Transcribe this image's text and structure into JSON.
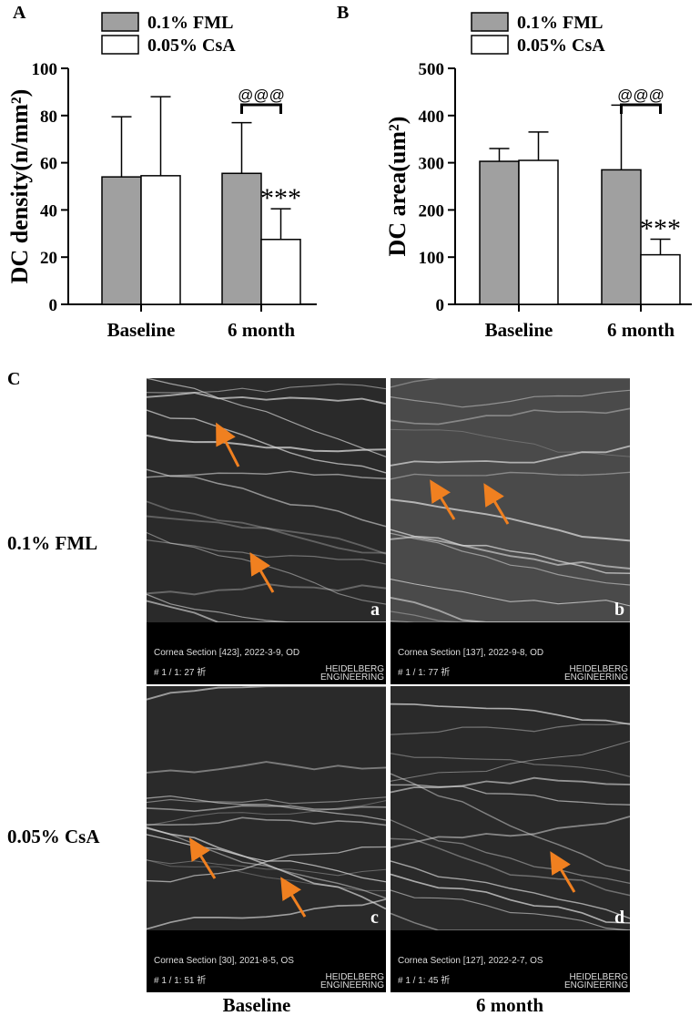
{
  "chart_data": [
    {
      "type": "bar",
      "label": "A",
      "ylabel": "DC density(n/mm²)",
      "categories": [
        "Baseline",
        "6 month"
      ],
      "series": [
        {
          "name": "0.1% FML",
          "color": "#a0a0a0",
          "values": [
            54,
            55.5
          ],
          "errors": [
            25.5,
            21.5
          ]
        },
        {
          "name": "0.05% CsA",
          "color": "#ffffff",
          "values": [
            54.5,
            27.5
          ],
          "errors": [
            33.5,
            13
          ]
        }
      ],
      "ylim": [
        0,
        100
      ],
      "yticks": [
        0,
        20,
        40,
        60,
        80,
        100
      ],
      "annotations": [
        "@@@",
        "***"
      ]
    },
    {
      "type": "bar",
      "label": "B",
      "ylabel": "DC area(um²)",
      "categories": [
        "Baseline",
        "6 month"
      ],
      "series": [
        {
          "name": "0.1% FML",
          "color": "#a0a0a0",
          "values": [
            303,
            285
          ],
          "errors": [
            27,
            137
          ]
        },
        {
          "name": "0.05% CsA",
          "color": "#ffffff",
          "values": [
            305,
            105
          ],
          "errors": [
            60,
            33
          ]
        }
      ],
      "ylim": [
        0,
        500
      ],
      "yticks": [
        0,
        100,
        200,
        300,
        400,
        500
      ],
      "annotations": [
        "@@@",
        "***"
      ]
    }
  ],
  "panel_c": {
    "label": "C",
    "row_labels": [
      "0.1% FML",
      "0.05% CsA"
    ],
    "column_labels": [
      "Baseline",
      "6 month"
    ],
    "logo": [
      "HEIDELBERG",
      "ENGINEERING"
    ],
    "images": [
      {
        "letter": "a",
        "caption": "Cornea Section [423],  2022-3-9,   OD",
        "frame": "# 1 / 1:   27 祈"
      },
      {
        "letter": "b",
        "caption": "Cornea Section [137],  2022-9-8,   OD",
        "frame": "# 1 / 1:   77 祈"
      },
      {
        "letter": "c",
        "caption": "Cornea Section [30],  2021-8-5,   OS",
        "frame": "# 1 / 1:   51 祈"
      },
      {
        "letter": "d",
        "caption": "Cornea Section [127],  2022-2-7,   OS",
        "frame": "# 1 / 1:   45 祈"
      }
    ]
  }
}
